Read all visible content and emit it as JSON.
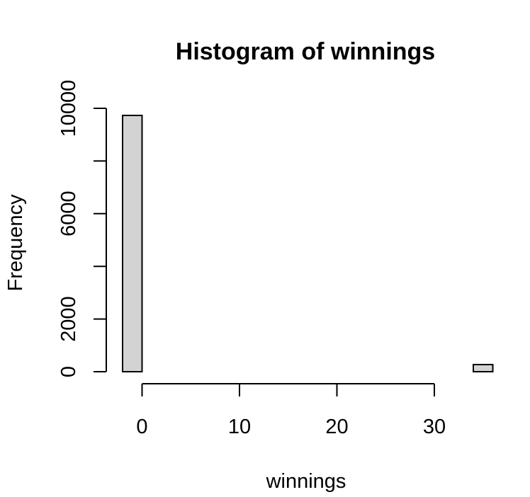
{
  "chart_data": {
    "type": "bar",
    "title": "Histogram of winnings",
    "xlabel": "winnings",
    "ylabel": "Frequency",
    "bins": [
      {
        "x0": -2,
        "x1": 0,
        "count": 9730
      },
      {
        "x0": 0,
        "x1": 2,
        "count": 0
      },
      {
        "x0": 2,
        "x1": 4,
        "count": 0
      },
      {
        "x0": 4,
        "x1": 6,
        "count": 0
      },
      {
        "x0": 6,
        "x1": 8,
        "count": 0
      },
      {
        "x0": 8,
        "x1": 10,
        "count": 0
      },
      {
        "x0": 10,
        "x1": 12,
        "count": 0
      },
      {
        "x0": 12,
        "x1": 14,
        "count": 0
      },
      {
        "x0": 14,
        "x1": 16,
        "count": 0
      },
      {
        "x0": 16,
        "x1": 18,
        "count": 0
      },
      {
        "x0": 18,
        "x1": 20,
        "count": 0
      },
      {
        "x0": 20,
        "x1": 22,
        "count": 0
      },
      {
        "x0": 22,
        "x1": 24,
        "count": 0
      },
      {
        "x0": 24,
        "x1": 26,
        "count": 0
      },
      {
        "x0": 26,
        "x1": 28,
        "count": 0
      },
      {
        "x0": 28,
        "x1": 30,
        "count": 0
      },
      {
        "x0": 30,
        "x1": 32,
        "count": 0
      },
      {
        "x0": 32,
        "x1": 34,
        "count": 0
      },
      {
        "x0": 34,
        "x1": 36,
        "count": 270
      }
    ],
    "xticks": [
      0,
      10,
      20,
      30
    ],
    "yticks": [
      0,
      2000,
      6000,
      10000
    ],
    "yticks_unlabeled": [
      4000,
      8000
    ],
    "xlim": [
      -2,
      36
    ],
    "ylim": [
      0,
      10000
    ],
    "grid": false,
    "bar_color": "#d3d3d3"
  }
}
